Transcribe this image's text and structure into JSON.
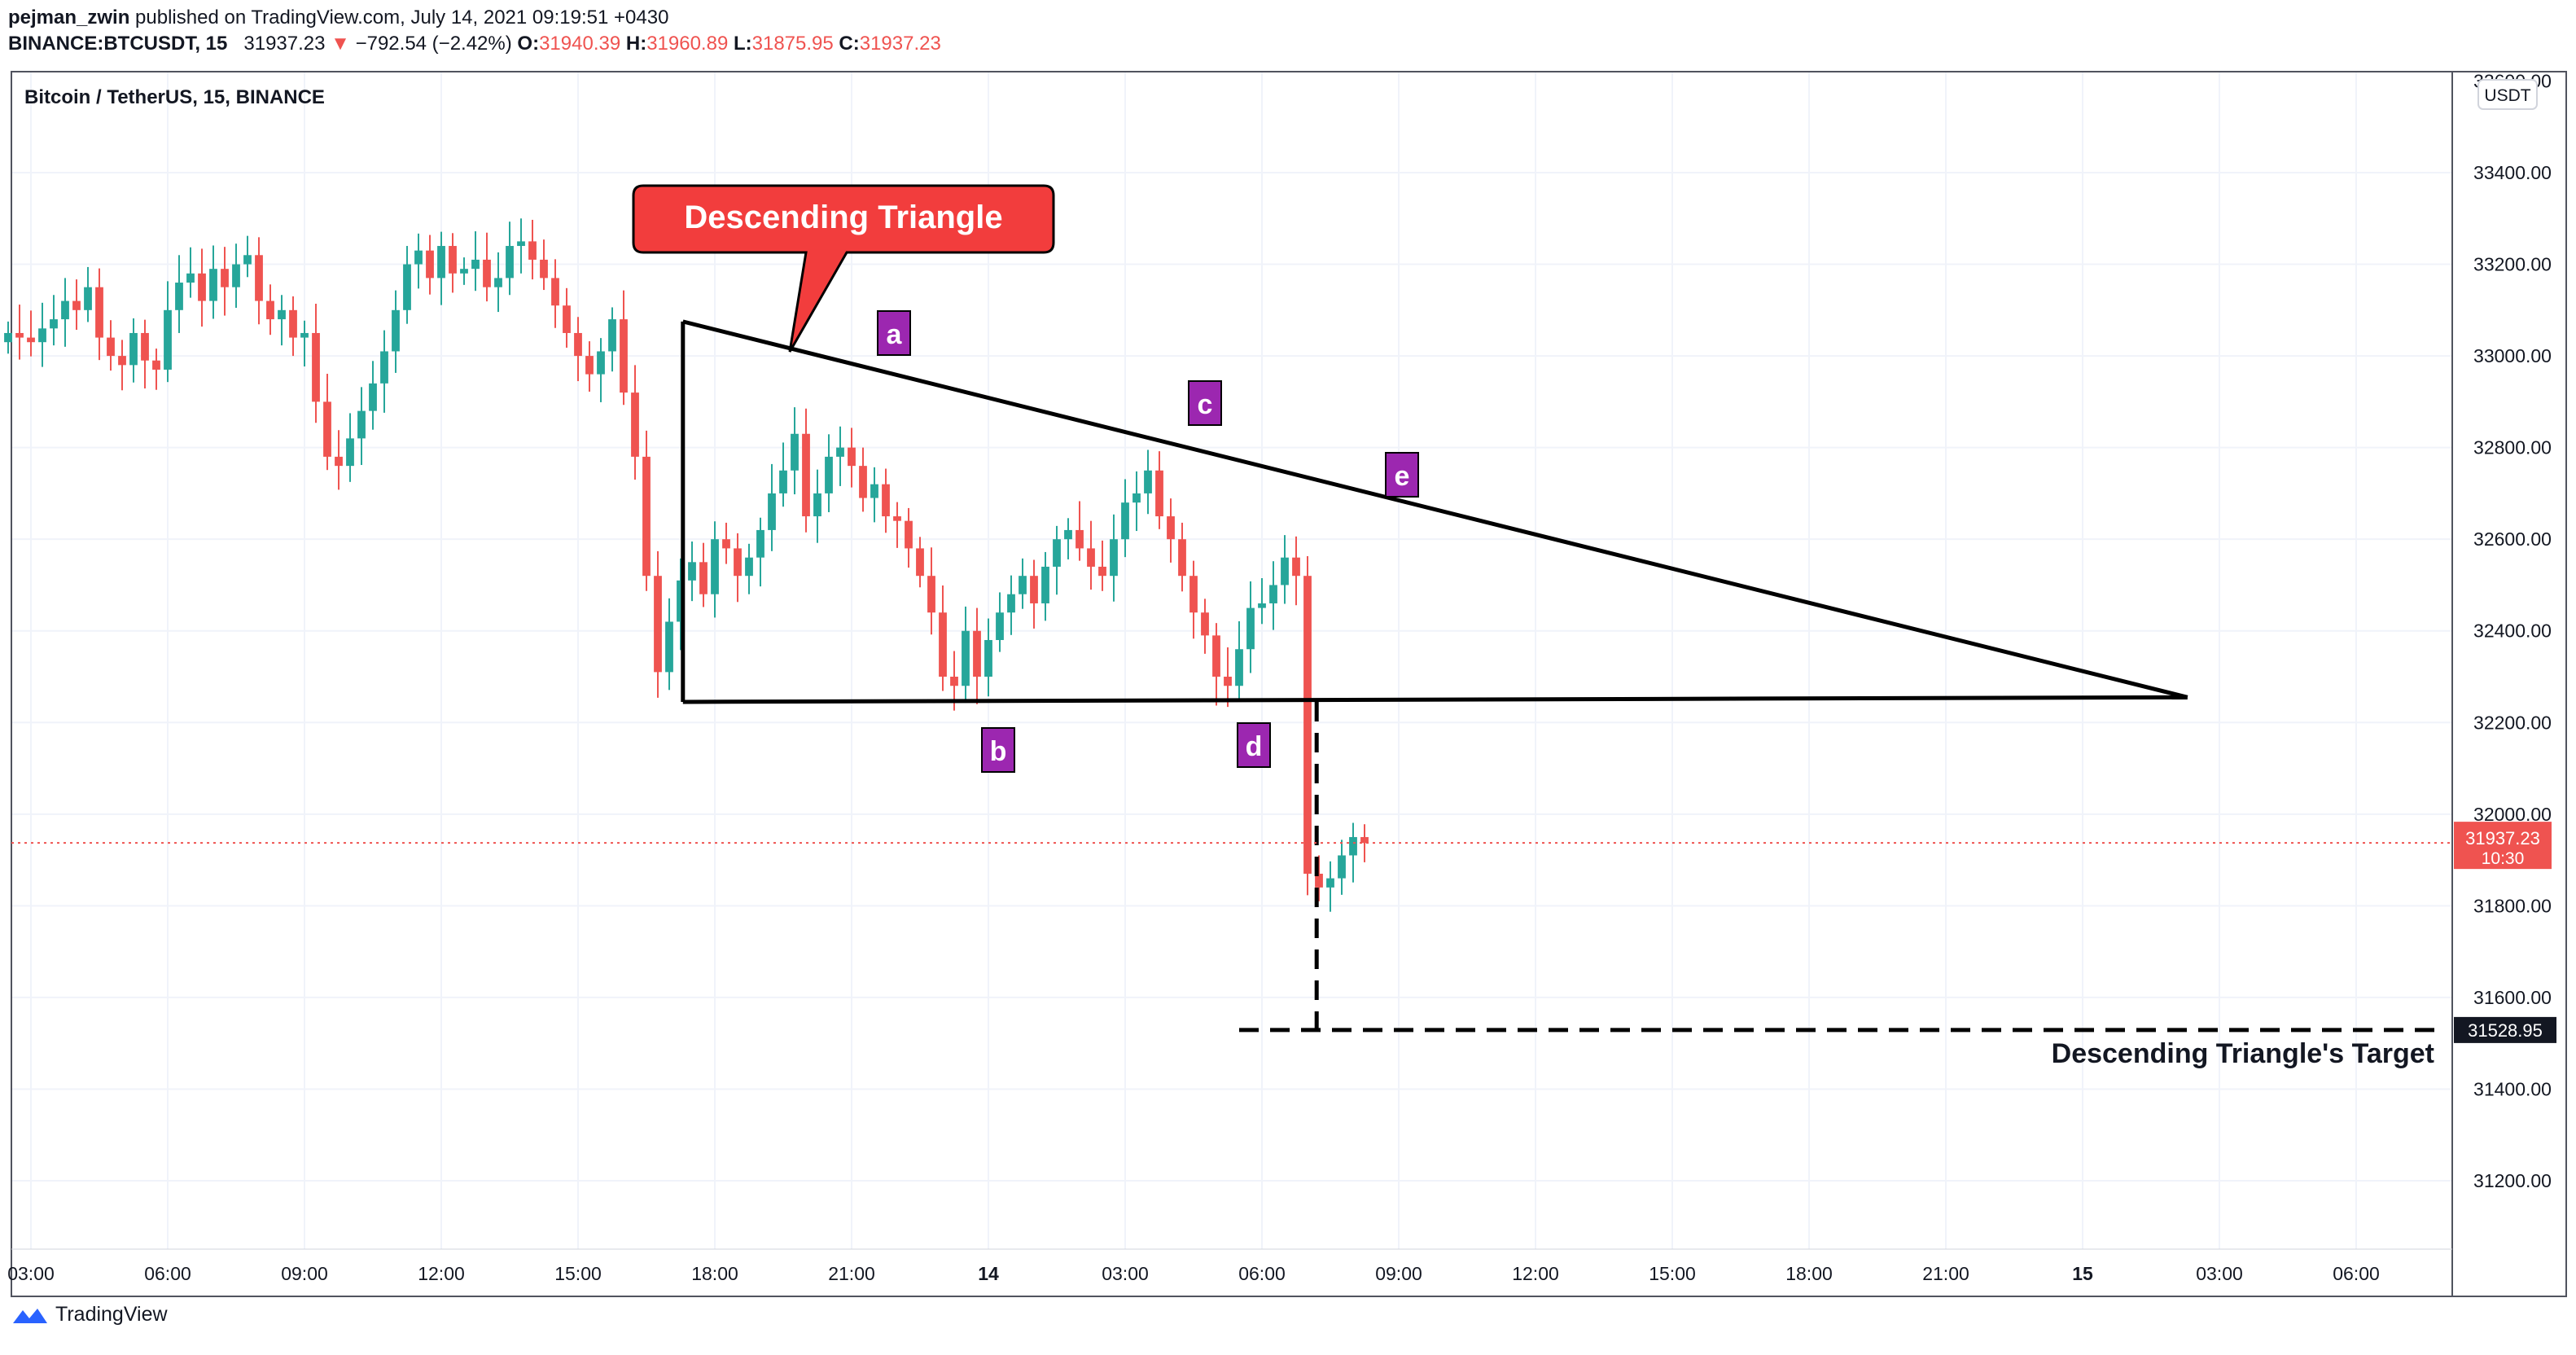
{
  "header": {
    "author": "pejman_zwin",
    "published_text": "published on TradingView.com, July 14, 2021 09:19:51 +0430",
    "symbol": "BINANCE:BTCUSDT, 15",
    "last": "31937.23",
    "change_arrow": "▼",
    "change": "−792.54 (−2.42%)",
    "o_label": "O:",
    "o": "31940.39",
    "h_label": "H:",
    "h": "31960.89",
    "l_label": "L:",
    "l": "31875.95",
    "c_label": "C:",
    "c": "31937.23"
  },
  "chart_title": "Bitcoin / TetherUS, 15, BINANCE",
  "currency_badge": "USDT",
  "footer": {
    "brand": "TradingView"
  },
  "colors": {
    "up": "#26a69a",
    "down": "#ef5350",
    "callout": "#f23d3d",
    "label_box": "#9c27b0"
  },
  "chart_data": {
    "type": "candlestick",
    "y_axis_labels": [
      "33400.00",
      "33200.00",
      "33000.00",
      "32800.00",
      "32600.00",
      "32400.00",
      "32200.00",
      "32000.00",
      "31800.00",
      "31600.00",
      "31400.00",
      "31200.00"
    ],
    "y_axis_values": [
      33400,
      33200,
      33000,
      32800,
      32600,
      32400,
      32200,
      32000,
      31800,
      31600,
      31400,
      31200
    ],
    "y_axis_top_partial": "33600.00",
    "x_axis_labels": [
      "03:00",
      "06:00",
      "09:00",
      "12:00",
      "15:00",
      "18:00",
      "21:00",
      "14",
      "03:00",
      "06:00",
      "09:00",
      "12:00",
      "15:00",
      "18:00",
      "21:00",
      "15",
      "03:00",
      "06:00"
    ],
    "x_axis_bold": [
      false,
      false,
      false,
      false,
      false,
      false,
      false,
      true,
      false,
      false,
      false,
      false,
      false,
      false,
      false,
      true,
      false,
      false
    ],
    "last_price": "31937.23",
    "last_price_value": 31937.23,
    "countdown": "10:30",
    "target_price": "31528.95",
    "target_value": 31528.95,
    "target_label": "Descending Triangle's Target",
    "callout_text": "Descending Triangle",
    "wave_labels": [
      "a",
      "b",
      "c",
      "d",
      "e"
    ],
    "triangle": {
      "upper_line": {
        "start": [
          17.3,
          33075
        ],
        "end": [
          50.3,
          32255
        ]
      },
      "base_line": {
        "start": [
          17.3,
          32245
        ],
        "end": [
          50.3,
          32255
        ]
      }
    },
    "closes": [
      33050,
      33040,
      33030,
      33060,
      33080,
      33120,
      33100,
      33150,
      33040,
      33000,
      32980,
      33050,
      32990,
      32970,
      33100,
      33160,
      33180,
      33120,
      33190,
      33150,
      33200,
      33220,
      33120,
      33080,
      33100,
      33040,
      33050,
      32900,
      32780,
      32760,
      32820,
      32880,
      32940,
      33010,
      33100,
      33200,
      33230,
      33170,
      33240,
      33180,
      33190,
      33210,
      33150,
      33170,
      33240,
      33250,
      33210,
      33170,
      33110,
      33050,
      33000,
      32960,
      33010,
      33080,
      32920,
      32780,
      32520,
      32310,
      32420,
      32510,
      32550,
      32480,
      32600,
      32580,
      32520,
      32560,
      32620,
      32700,
      32750,
      32830,
      32650,
      32700,
      32780,
      32800,
      32760,
      32690,
      32720,
      32650,
      32640,
      32580,
      32520,
      32440,
      32300,
      32280,
      32400,
      32300,
      32380,
      32440,
      32480,
      32520,
      32460,
      32540,
      32600,
      32620,
      32580,
      32540,
      32520,
      32600,
      32680,
      32700,
      32750,
      32650,
      32600,
      32520,
      32440,
      32390,
      32300,
      32280,
      32360,
      32450,
      32460,
      32500,
      32560,
      32520,
      31870,
      31840,
      31860,
      31910,
      31950,
      31937
    ],
    "time_start_hours": 2.5,
    "bar_minutes": 15
  }
}
